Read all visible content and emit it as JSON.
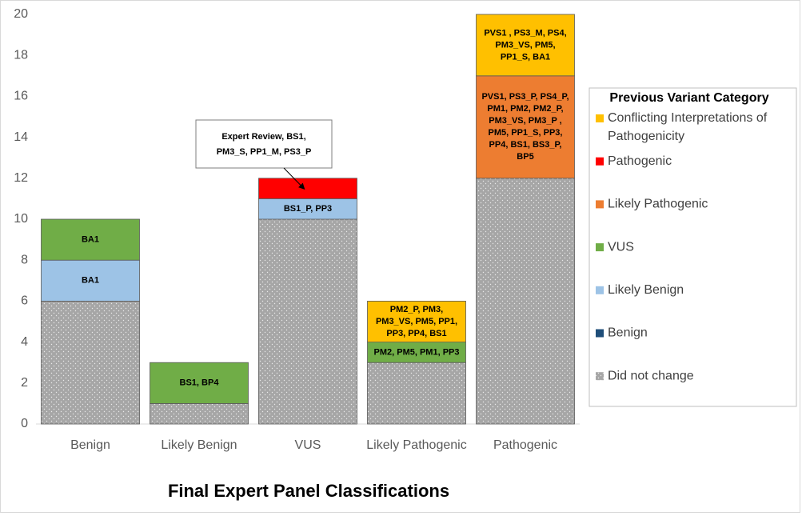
{
  "chart_data": {
    "type": "stacked_bar",
    "title": "Final Expert Panel Classifications",
    "legend_title": "Previous Variant Category",
    "legend_position": "right",
    "grid": false,
    "categories": [
      "Benign",
      "Likely Benign",
      "VUS",
      "Likely Pathogenic",
      "Pathogenic"
    ],
    "ylim": [
      0,
      20
    ],
    "yticks": [
      0,
      2,
      4,
      6,
      8,
      10,
      12,
      14,
      16,
      18,
      20
    ],
    "series": [
      {
        "name": "Did not change",
        "color": "#a6a6a6",
        "pattern": "dotted",
        "values": [
          6,
          1,
          10,
          3,
          12
        ],
        "labels": [
          null,
          null,
          null,
          null,
          null
        ]
      },
      {
        "name": "Benign",
        "color": "#1f4e79",
        "values": [
          0,
          0,
          0,
          0,
          0
        ],
        "labels": [
          null,
          null,
          null,
          null,
          null
        ]
      },
      {
        "name": "Likely Benign",
        "color": "#9dc3e6",
        "values": [
          2,
          0,
          1,
          0,
          0
        ],
        "labels": [
          [
            "BA1"
          ],
          null,
          [
            "BS1_P, PP3"
          ],
          null,
          null
        ]
      },
      {
        "name": "VUS",
        "color": "#70ad47",
        "values": [
          2,
          2,
          0,
          1,
          0
        ],
        "labels": [
          [
            "BA1"
          ],
          [
            "BS1, BP4"
          ],
          null,
          [
            "PM2, PM5, PM1, PP3"
          ],
          null
        ]
      },
      {
        "name": "Likely Pathogenic",
        "color": "#ed7d31",
        "values": [
          0,
          0,
          0,
          0,
          5
        ],
        "labels": [
          null,
          null,
          null,
          null,
          [
            "PVS1, PS3_P, PS4_P,",
            "PM1, PM2, PM2_P,",
            "PM3_VS, PM3_P ,",
            "PM5, PP1_S, PP3,",
            "PP4, BS1, BS3_P,",
            "BP5"
          ]
        ]
      },
      {
        "name": "Pathogenic",
        "color": "#ff0000",
        "values": [
          0,
          0,
          1,
          0,
          0
        ],
        "labels": [
          null,
          null,
          null,
          null,
          null
        ]
      },
      {
        "name": "Conflicting Interpretations of Pathogenicity",
        "color": "#ffc000",
        "values": [
          0,
          0,
          0,
          2,
          3
        ],
        "labels": [
          null,
          null,
          null,
          [
            "PM2_P, PM3,",
            "PM3_VS, PM5, PP1,",
            "PP3, PP4, BS1"
          ],
          [
            "PVS1 , PS3_M, PS4,",
            "PM3_VS, PM5,",
            "PP1_S, BA1"
          ]
        ]
      }
    ],
    "annotation": {
      "lines": [
        "Expert Review, BS1,",
        "PM3_S, PP1_M,  PS3_P"
      ],
      "series": 5,
      "category": 2
    }
  }
}
